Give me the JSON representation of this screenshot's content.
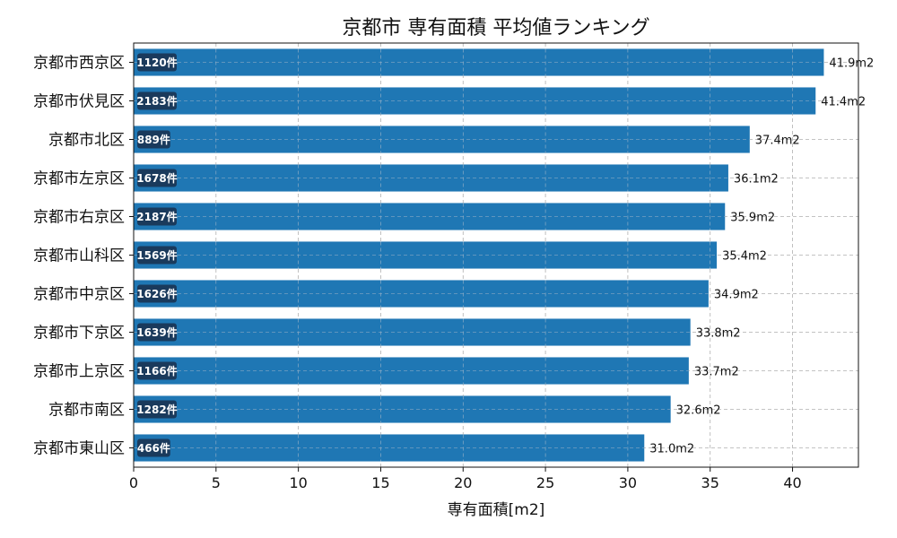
{
  "chart_data": {
    "type": "bar",
    "orientation": "horizontal",
    "title": "京都市 専有面積 平均値ランキング",
    "xlabel": "専有面積[m2]",
    "ylabel": "",
    "xlim": [
      0,
      44
    ],
    "xticks": [
      0,
      5,
      10,
      15,
      20,
      25,
      30,
      35,
      40
    ],
    "grid": true,
    "bar_color": "#1f77b4",
    "badge_color": "#1a3a5c",
    "categories": [
      "京都市西京区",
      "京都市伏見区",
      "京都市北区",
      "京都市左京区",
      "京都市右京区",
      "京都市山科区",
      "京都市中京区",
      "京都市下京区",
      "京都市上京区",
      "京都市南区",
      "京都市東山区"
    ],
    "values": [
      41.9,
      41.4,
      37.4,
      36.1,
      35.9,
      35.4,
      34.9,
      33.8,
      33.7,
      32.6,
      31.0
    ],
    "value_labels": [
      "41.9m2",
      "41.4m2",
      "37.4m2",
      "36.1m2",
      "35.9m2",
      "35.4m2",
      "34.9m2",
      "33.8m2",
      "33.7m2",
      "32.6m2",
      "31.0m2"
    ],
    "counts": [
      "1120件",
      "2183件",
      "889件",
      "1678件",
      "2187件",
      "1569件",
      "1626件",
      "1639件",
      "1166件",
      "1282件",
      "466件"
    ]
  }
}
